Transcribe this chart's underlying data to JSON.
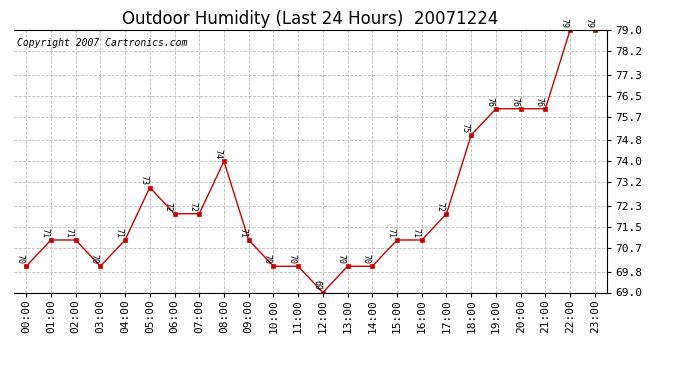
{
  "title": "Outdoor Humidity (Last 24 Hours)  20071224",
  "copyright": "Copyright 2007 Cartronics.com",
  "hours": [
    "00:00",
    "01:00",
    "02:00",
    "03:00",
    "04:00",
    "05:00",
    "06:00",
    "07:00",
    "08:00",
    "09:00",
    "10:00",
    "11:00",
    "12:00",
    "13:00",
    "14:00",
    "15:00",
    "16:00",
    "17:00",
    "18:00",
    "19:00",
    "20:00",
    "21:00",
    "22:00",
    "23:00"
  ],
  "values": [
    70,
    71,
    71,
    70,
    71,
    73,
    72,
    72,
    74,
    71,
    70,
    70,
    69,
    70,
    70,
    71,
    71,
    72,
    75,
    76,
    76,
    76,
    79,
    79
  ],
  "ylim": [
    69.0,
    79.0
  ],
  "yticks": [
    69.0,
    69.8,
    70.7,
    71.5,
    72.3,
    73.2,
    74.0,
    74.8,
    75.7,
    76.5,
    77.3,
    78.2,
    79.0
  ],
  "ytick_labels": [
    "69.0",
    "69.8",
    "70.7",
    "71.5",
    "72.3",
    "73.2",
    "74.0",
    "74.8",
    "75.7",
    "76.5",
    "77.3",
    "78.2",
    "79.0"
  ],
  "line_color": "#cc0000",
  "marker_color": "#cc0000",
  "grid_color": "#bbbbbb",
  "bg_color": "#ffffff",
  "title_fontsize": 12,
  "label_fontsize": 8,
  "copyright_fontsize": 7
}
